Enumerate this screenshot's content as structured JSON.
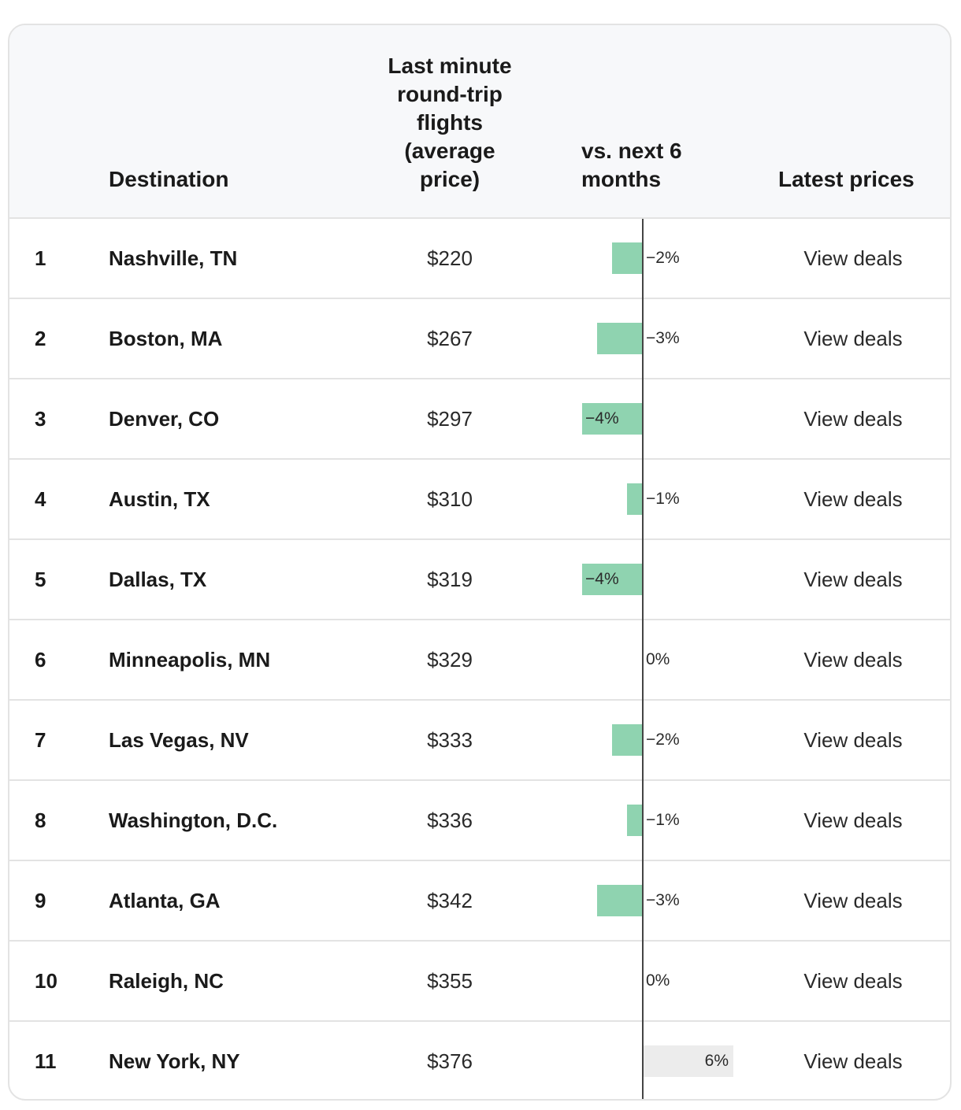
{
  "table": {
    "headers": {
      "destination": "Destination",
      "price_line1": "Last minute",
      "price_line2": "round-trip",
      "price_line3": "flights",
      "price_line4": "(average",
      "price_line5": "price)",
      "vs_line1": "vs. next 6",
      "vs_line2": "months",
      "latest": "Latest prices"
    },
    "rows": [
      {
        "rank": "1",
        "destination": "Nashville, TN",
        "price": "$220",
        "change_label": "−2%",
        "link": "View deals"
      },
      {
        "rank": "2",
        "destination": "Boston, MA",
        "price": "$267",
        "change_label": "−3%",
        "link": "View deals"
      },
      {
        "rank": "3",
        "destination": "Denver, CO",
        "price": "$297",
        "change_label": "−4%",
        "link": "View deals"
      },
      {
        "rank": "4",
        "destination": "Austin, TX",
        "price": "$310",
        "change_label": "−1%",
        "link": "View deals"
      },
      {
        "rank": "5",
        "destination": "Dallas, TX",
        "price": "$319",
        "change_label": "−4%",
        "link": "View deals"
      },
      {
        "rank": "6",
        "destination": "Minneapolis, MN",
        "price": "$329",
        "change_label": "0%",
        "link": "View deals"
      },
      {
        "rank": "7",
        "destination": "Las Vegas, NV",
        "price": "$333",
        "change_label": "−2%",
        "link": "View deals"
      },
      {
        "rank": "8",
        "destination": "Washington, D.C.",
        "price": "$336",
        "change_label": "−1%",
        "link": "View deals"
      },
      {
        "rank": "9",
        "destination": "Atlanta, GA",
        "price": "$342",
        "change_label": "−3%",
        "link": "View deals"
      },
      {
        "rank": "10",
        "destination": "Raleigh, NC",
        "price": "$355",
        "change_label": "0%",
        "link": "View deals"
      },
      {
        "rank": "11",
        "destination": "New York, NY",
        "price": "$376",
        "change_label": "6%",
        "link": "View deals"
      }
    ]
  },
  "chart_data": {
    "type": "bar",
    "orientation": "horizontal",
    "categories": [
      "Nashville, TN",
      "Boston, MA",
      "Denver, CO",
      "Austin, TX",
      "Dallas, TX",
      "Minneapolis, MN",
      "Las Vegas, NV",
      "Washington, D.C.",
      "Atlanta, GA",
      "Raleigh, NC",
      "New York, NY"
    ],
    "values": [
      -2,
      -3,
      -4,
      -1,
      -4,
      0,
      -2,
      -1,
      -3,
      0,
      6
    ],
    "unit": "%",
    "colors": {
      "negative": "#8fd3b0",
      "positive": "#ececec",
      "axis": "#444444"
    }
  }
}
